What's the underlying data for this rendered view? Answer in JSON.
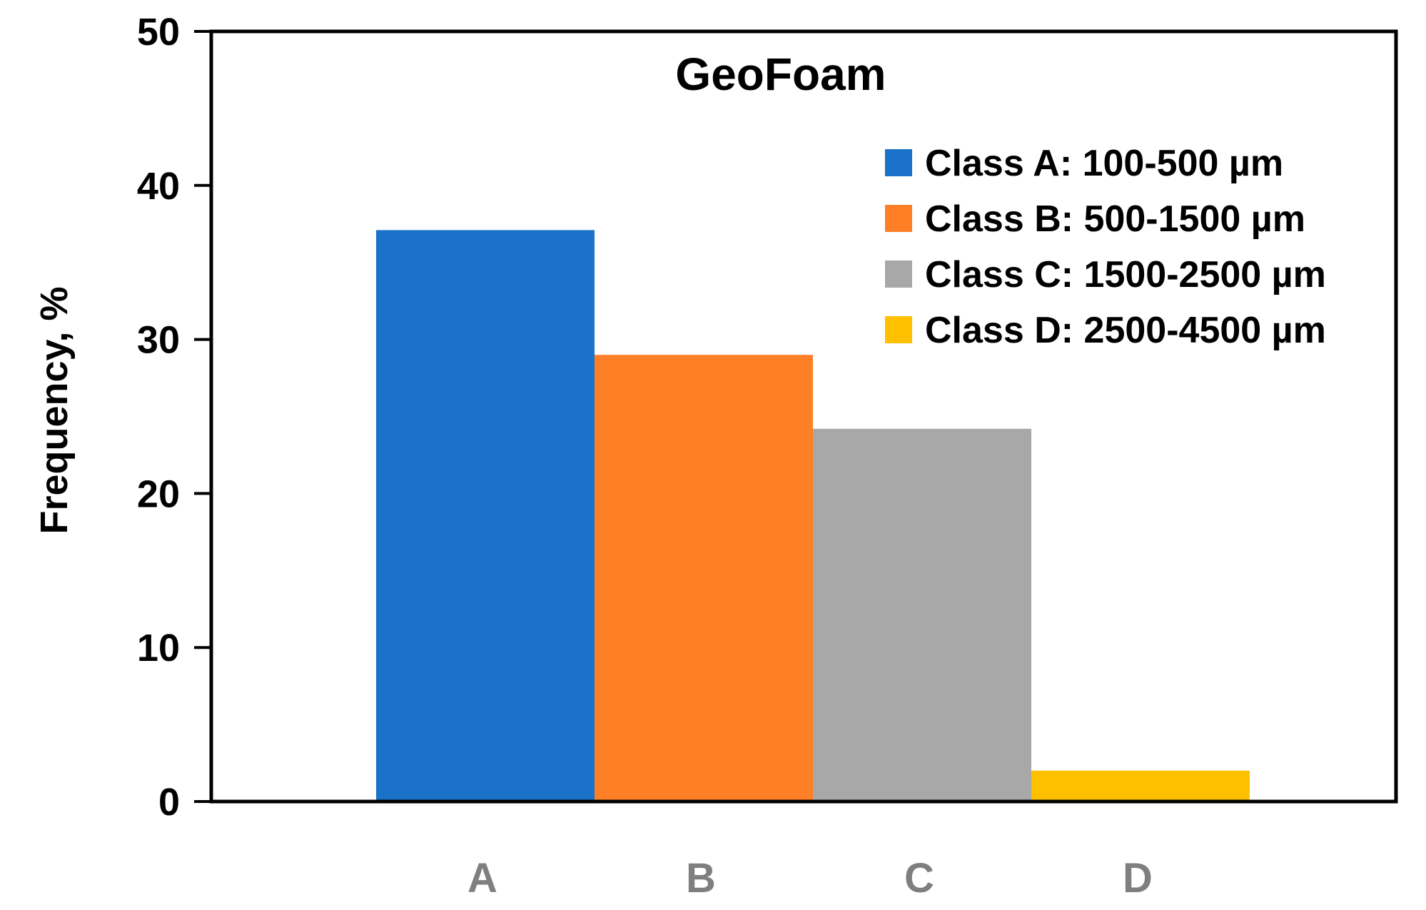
{
  "chart_data": {
    "type": "bar",
    "title": "GeoFoam",
    "xlabel": "",
    "ylabel": "Frequency, %",
    "ylim": [
      0,
      50
    ],
    "yticks": [
      0,
      10,
      20,
      30,
      40,
      50
    ],
    "categories": [
      "A",
      "B",
      "C",
      "D"
    ],
    "values": [
      37.1,
      29.0,
      24.2,
      2.0
    ],
    "colors": [
      "#1a73c8",
      "#ff7f27",
      "#a8a8a8",
      "#ffc000"
    ],
    "legend": {
      "position": "top-right",
      "entries": [
        {
          "label": "Class A: 100-500 µm",
          "color": "#1a73c8"
        },
        {
          "label": "Class B: 500-1500 µm",
          "color": "#ff7f27"
        },
        {
          "label": "Class C: 1500-2500 µm",
          "color": "#a8a8a8"
        },
        {
          "label": "Class D: 2500-4500 µm",
          "color": "#ffc000"
        }
      ]
    },
    "grid": false
  }
}
